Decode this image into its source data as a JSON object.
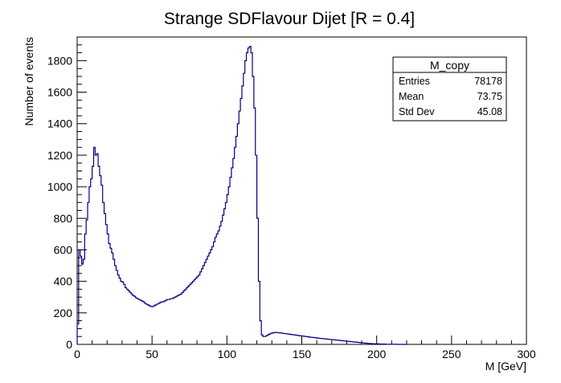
{
  "chart_data": {
    "type": "histogram",
    "title": "Strange SDFlavour Dijet [R = 0.4]",
    "xlabel": "M [GeV]",
    "ylabel": "Number of events",
    "xlim": [
      0,
      300
    ],
    "ylim": [
      0,
      1950
    ],
    "x_ticks": [
      "0",
      "50",
      "100",
      "150",
      "200",
      "250",
      "300"
    ],
    "y_ticks": [
      "0",
      "200",
      "400",
      "600",
      "800",
      "1000",
      "1200",
      "1400",
      "1600",
      "1800"
    ],
    "bin_width": 1,
    "series": [
      {
        "x_start": 0,
        "line_color": "#000080",
        "values": [
          130,
          600,
          560,
          510,
          540,
          700,
          790,
          900,
          1000,
          1050,
          1130,
          1250,
          1200,
          1210,
          1130,
          1070,
          1010,
          900,
          830,
          760,
          700,
          640,
          610,
          580,
          540,
          500,
          470,
          440,
          420,
          400,
          395,
          380,
          360,
          350,
          340,
          330,
          320,
          310,
          305,
          295,
          290,
          285,
          280,
          275,
          270,
          260,
          255,
          250,
          245,
          240,
          240,
          245,
          250,
          255,
          260,
          265,
          270,
          270,
          275,
          280,
          285,
          285,
          290,
          290,
          295,
          300,
          305,
          310,
          315,
          320,
          330,
          340,
          350,
          360,
          370,
          380,
          390,
          400,
          410,
          420,
          430,
          440,
          460,
          480,
          500,
          520,
          540,
          560,
          580,
          600,
          620,
          650,
          680,
          700,
          720,
          750,
          780,
          820,
          860,
          900,
          950,
          1000,
          1060,
          1120,
          1180,
          1250,
          1320,
          1400,
          1480,
          1560,
          1640,
          1720,
          1800,
          1850,
          1880,
          1890,
          1850,
          1700,
          1500,
          1200,
          800,
          400,
          150,
          60,
          50,
          50,
          55,
          60,
          65,
          70,
          72,
          74,
          76,
          75,
          74,
          73,
          72,
          70,
          69,
          68,
          66,
          65,
          64,
          62,
          61,
          60,
          58,
          57,
          55,
          54,
          53,
          52,
          50,
          49,
          48,
          46,
          45,
          44,
          43,
          42,
          40,
          39,
          38,
          37,
          36,
          35,
          34,
          33,
          32,
          31,
          30,
          29,
          28,
          27,
          26,
          25,
          24,
          23,
          22,
          21,
          20,
          19,
          18,
          17,
          16,
          15,
          14,
          13,
          12,
          11,
          10,
          9,
          8,
          7,
          6,
          5,
          5,
          4,
          4,
          3,
          3,
          3,
          2,
          2,
          2,
          2,
          1,
          1,
          1,
          1,
          1,
          1,
          1,
          1,
          0,
          0,
          0,
          0,
          0,
          0
        ]
      }
    ]
  },
  "stats": {
    "name": "M_copy",
    "entries_label": "Entries",
    "entries_value": "78178",
    "mean_label": "Mean",
    "mean_value": "73.75",
    "stddev_label": "Std Dev",
    "stddev_value": "45.08"
  }
}
